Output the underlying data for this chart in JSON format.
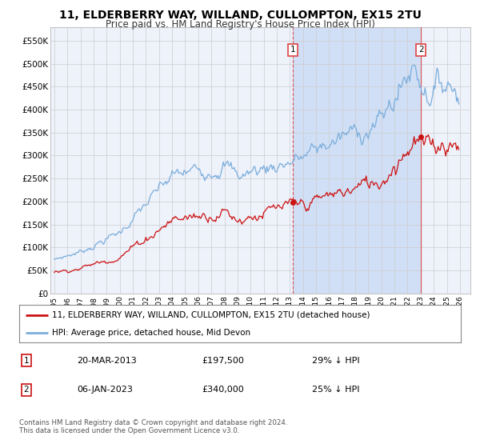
{
  "title": "11, ELDERBERRY WAY, WILLAND, CULLOMPTON, EX15 2TU",
  "subtitle": "Price paid vs. HM Land Registry's House Price Index (HPI)",
  "title_fontsize": 10,
  "subtitle_fontsize": 8.5,
  "ylabel_ticks": [
    "£0",
    "£50K",
    "£100K",
    "£150K",
    "£200K",
    "£250K",
    "£300K",
    "£350K",
    "£400K",
    "£450K",
    "£500K",
    "£550K"
  ],
  "ytick_vals": [
    0,
    50000,
    100000,
    150000,
    200000,
    250000,
    300000,
    350000,
    400000,
    450000,
    500000,
    550000
  ],
  "ylim": [
    0,
    580000
  ],
  "xtick_years": [
    1995,
    1996,
    1997,
    1998,
    1999,
    2000,
    2001,
    2002,
    2003,
    2004,
    2005,
    2006,
    2007,
    2008,
    2009,
    2010,
    2011,
    2012,
    2013,
    2014,
    2015,
    2016,
    2017,
    2018,
    2019,
    2020,
    2021,
    2022,
    2023,
    2024,
    2025,
    2026
  ],
  "hpi_color": "#7aaddc",
  "price_color": "#cc1111",
  "vline_color": "#dd4444",
  "grid_color": "#cccccc",
  "bg_color": "#eef2fb",
  "shade_color": "#d0dff5",
  "legend_label_red": "11, ELDERBERRY WAY, WILLAND, CULLOMPTON, EX15 2TU (detached house)",
  "legend_label_blue": "HPI: Average price, detached house, Mid Devon",
  "purchase1_date": 2013.22,
  "purchase1_price": 197500,
  "purchase1_label": "1",
  "purchase2_date": 2023.02,
  "purchase2_price": 340000,
  "purchase2_label": "2",
  "table_rows": [
    {
      "num": "1",
      "date": "20-MAR-2013",
      "price": "£197,500",
      "hpi": "29% ↓ HPI"
    },
    {
      "num": "2",
      "date": "06-JAN-2023",
      "price": "£340,000",
      "hpi": "25% ↓ HPI"
    }
  ],
  "footnote": "Contains HM Land Registry data © Crown copyright and database right 2024.\nThis data is licensed under the Open Government Licence v3.0."
}
